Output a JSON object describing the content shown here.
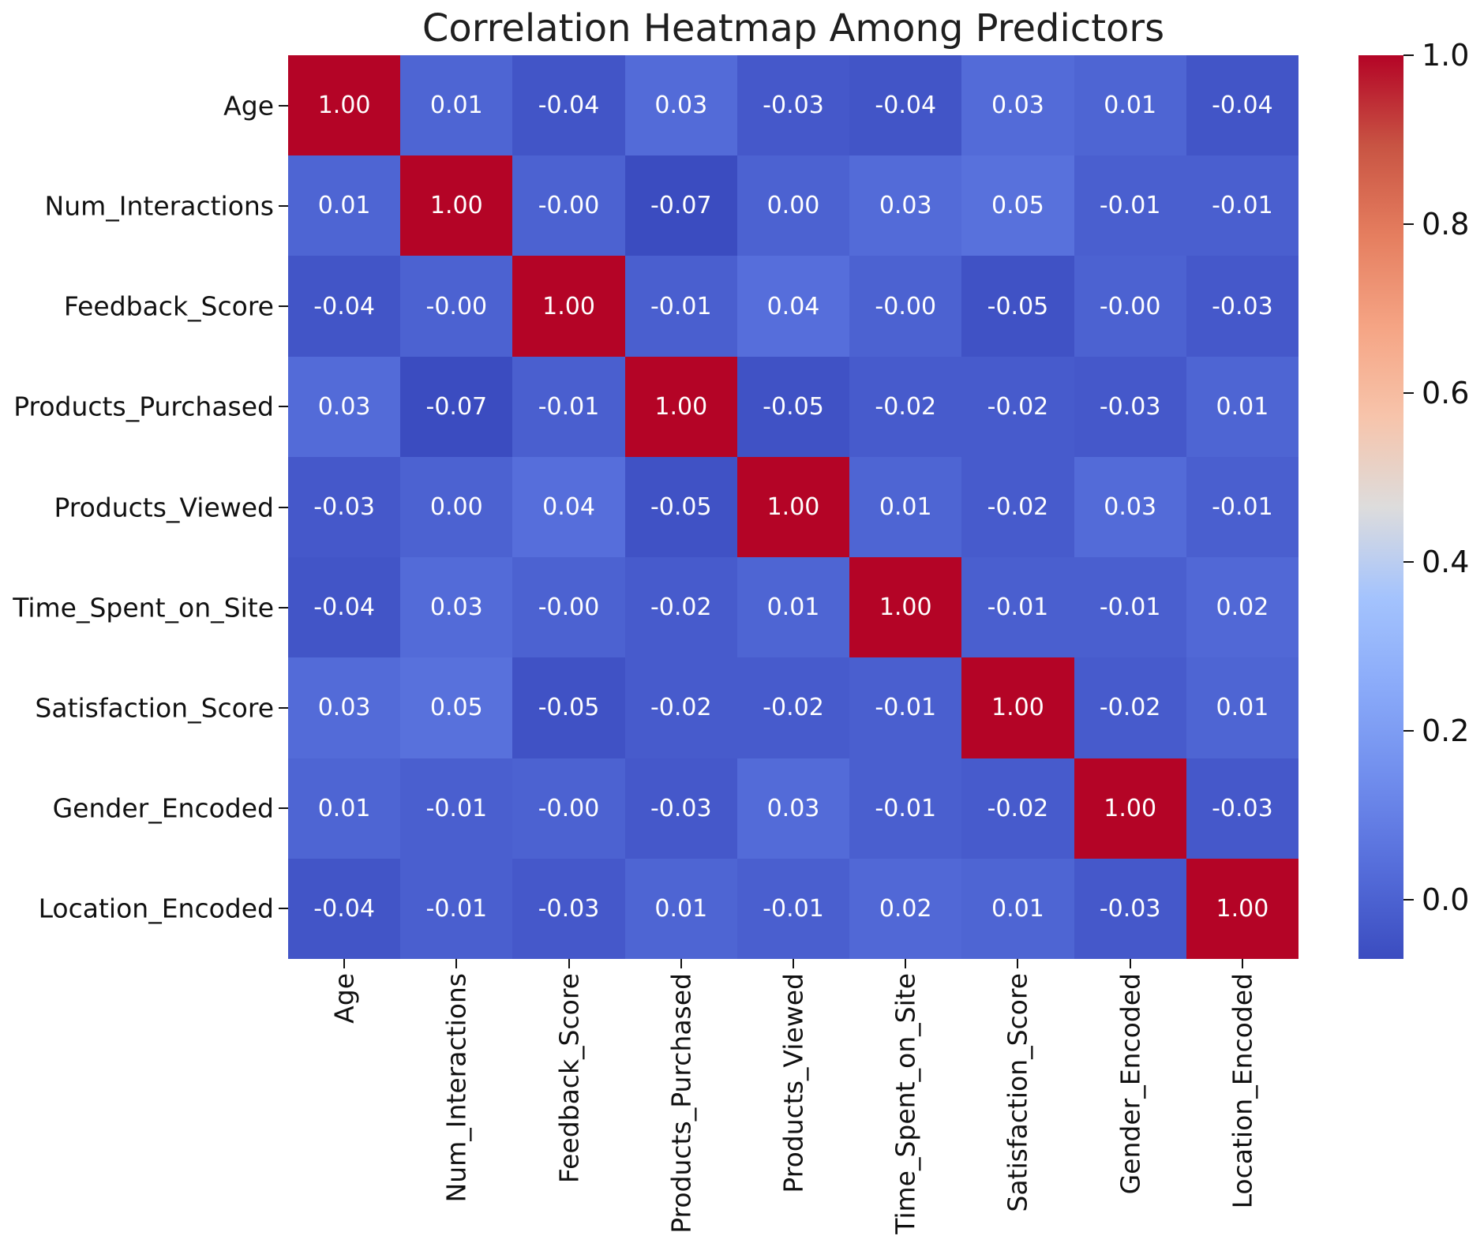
{
  "chart_data": {
    "type": "heatmap",
    "title": "Correlation Heatmap Among Predictors",
    "categories": [
      "Age",
      "Num_Interactions",
      "Feedback_Score",
      "Products_Purchased",
      "Products_Viewed",
      "Time_Spent_on_Site",
      "Satisfaction_Score",
      "Gender_Encoded",
      "Location_Encoded"
    ],
    "matrix_display": [
      [
        "1.00",
        "0.01",
        "-0.04",
        "0.03",
        "-0.03",
        "-0.04",
        "0.03",
        "0.01",
        "-0.04"
      ],
      [
        "0.01",
        "1.00",
        "-0.00",
        "-0.07",
        "0.00",
        "0.03",
        "0.05",
        "-0.01",
        "-0.01"
      ],
      [
        "-0.04",
        "-0.00",
        "1.00",
        "-0.01",
        "0.04",
        "-0.00",
        "-0.05",
        "-0.00",
        "-0.03"
      ],
      [
        "0.03",
        "-0.07",
        "-0.01",
        "1.00",
        "-0.05",
        "-0.02",
        "-0.02",
        "-0.03",
        "0.01"
      ],
      [
        "-0.03",
        "0.00",
        "0.04",
        "-0.05",
        "1.00",
        "0.01",
        "-0.02",
        "0.03",
        "-0.01"
      ],
      [
        "-0.04",
        "0.03",
        "-0.00",
        "-0.02",
        "0.01",
        "1.00",
        "-0.01",
        "-0.01",
        "0.02"
      ],
      [
        "0.03",
        "0.05",
        "-0.05",
        "-0.02",
        "-0.02",
        "-0.01",
        "1.00",
        "-0.02",
        "0.01"
      ],
      [
        "0.01",
        "-0.01",
        "-0.00",
        "-0.03",
        "0.03",
        "-0.01",
        "-0.02",
        "1.00",
        "-0.03"
      ],
      [
        "-0.04",
        "-0.01",
        "-0.03",
        "0.01",
        "-0.01",
        "0.02",
        "0.01",
        "-0.03",
        "1.00"
      ]
    ],
    "vmin": -0.07,
    "vmax": 1.0,
    "annotation_text_color": "#ffffff",
    "colorbar": {
      "tick_labels": [
        "1.0",
        "0.8",
        "0.6",
        "0.4",
        "0.2",
        "0.0"
      ],
      "tick_values": [
        1.0,
        0.8,
        0.6,
        0.4,
        0.2,
        0.0
      ]
    },
    "colormap": {
      "name": "coolwarm",
      "min_color": "#3B4CC0",
      "mid_color": "#DDDCDC",
      "max_color": "#B40426",
      "anchors": [
        {
          "t": 0.0,
          "hex": "#3B4CC0"
        },
        {
          "t": 0.1,
          "hex": "#556DDA"
        },
        {
          "t": 0.2,
          "hex": "#708DED"
        },
        {
          "t": 0.3,
          "hex": "#8AAAF9"
        },
        {
          "t": 0.4,
          "hex": "#A4C3FD"
        },
        {
          "t": 0.5,
          "hex": "#DDDCDC"
        },
        {
          "t": 0.6,
          "hex": "#F7C4AB"
        },
        {
          "t": 0.7,
          "hex": "#F5A484"
        },
        {
          "t": 0.8,
          "hex": "#E57E5F"
        },
        {
          "t": 0.9,
          "hex": "#C85443"
        },
        {
          "t": 1.0,
          "hex": "#B40426"
        }
      ]
    },
    "grid": false,
    "legend_position": "right-colorbar"
  }
}
